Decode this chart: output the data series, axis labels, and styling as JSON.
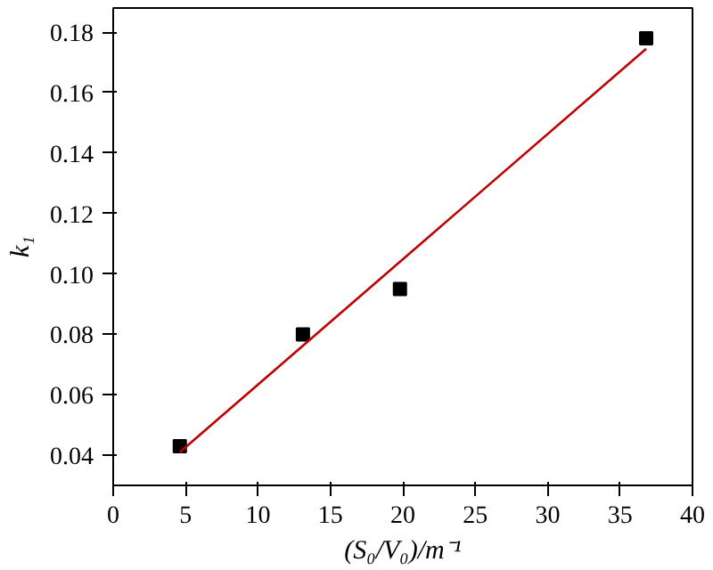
{
  "chart_data": {
    "type": "scatter",
    "xlabel": "(S₀/V₀)/m⁻¹",
    "ylabel": "k₁",
    "marker": "square",
    "grid": false,
    "xlim": [
      0,
      40
    ],
    "ylim": [
      0.03,
      0.188
    ],
    "xticks": [
      0,
      5,
      10,
      15,
      20,
      25,
      30,
      35,
      40
    ],
    "yticks": [
      {
        "value": 0.04,
        "label": "0.04"
      },
      {
        "value": 0.06,
        "label": "0.06"
      },
      {
        "value": 0.08,
        "label": "0.08"
      },
      {
        "value": 0.1,
        "label": "0.10"
      },
      {
        "value": 0.12,
        "label": "0.12"
      },
      {
        "value": 0.14,
        "label": "0.14"
      },
      {
        "value": 0.16,
        "label": "0.16"
      },
      {
        "value": 0.18,
        "label": "0.18"
      }
    ],
    "series": [
      {
        "color": "#000000",
        "x": [
          4.6,
          13.1,
          19.8,
          36.8
        ],
        "values": [
          0.043,
          0.08,
          0.095,
          0.178
        ]
      },
      {
        "type": "line",
        "color": "#c00000",
        "line_style": "solid",
        "marker": "none",
        "x": [
          4.6,
          36.8
        ],
        "values": [
          0.041,
          0.1745
        ]
      }
    ]
  }
}
